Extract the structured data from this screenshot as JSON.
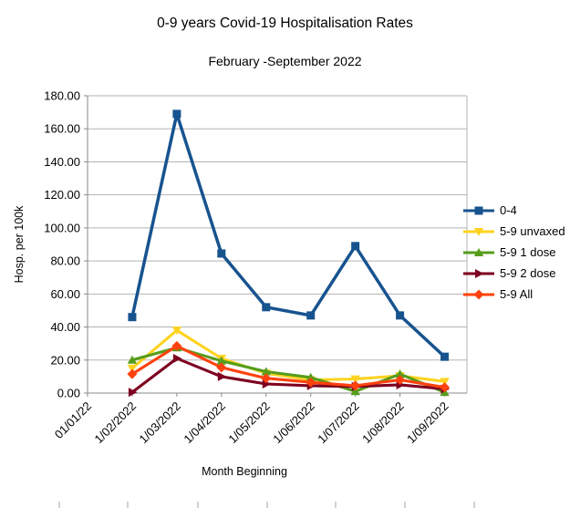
{
  "chart_data": {
    "type": "line",
    "title": "0-9 years Covid-19 Hospitalisation Rates",
    "subtitle": "February -September 2022",
    "xlabel": "Month Beginning",
    "ylabel": "Hosp. per 100k",
    "ylim": [
      0,
      180
    ],
    "ytick_step": 20,
    "ytick_labels": [
      "0.00",
      "20.00",
      "40.00",
      "60.00",
      "80.00",
      "100.00",
      "120.00",
      "140.00",
      "160.00",
      "180.00"
    ],
    "grid": true,
    "legend_position": "right",
    "categories": [
      "01/01/22",
      "1/02/2022",
      "1/03/2022",
      "1/04/2022",
      "1/05/2022",
      "1/06/2022",
      "1/07/2022",
      "1/08/2022",
      "1/09/2022"
    ],
    "series": [
      {
        "name": "0-4",
        "color": "#17538f",
        "marker": "square",
        "values": [
          null,
          46,
          169,
          84.5,
          52,
          47,
          89,
          47,
          22
        ]
      },
      {
        "name": "5-9 unvaxed",
        "color": "#ffd320",
        "marker": "triangle-down",
        "values": [
          null,
          15,
          38,
          21,
          12,
          8,
          8.5,
          10.5,
          7
        ]
      },
      {
        "name": "5-9 1 dose",
        "color": "#579d1c",
        "marker": "triangle-up",
        "values": [
          null,
          20,
          27.5,
          19.5,
          13,
          9.5,
          1,
          11.5,
          0.5
        ]
      },
      {
        "name": "5-9 2 dose",
        "color": "#7e0021",
        "marker": "triangle-right",
        "values": [
          null,
          0.5,
          21,
          10,
          5.5,
          4.5,
          4,
          5,
          2.5
        ]
      },
      {
        "name": "5-9 All",
        "color": "#ff420e",
        "marker": "diamond",
        "values": [
          null,
          11.5,
          28.5,
          15.5,
          9,
          6.5,
          4.5,
          8,
          3.5
        ]
      }
    ],
    "colors": {
      "gridline": "#b3b3b3",
      "axis": "#8a8a8a",
      "bottom_ticks": "#a6a6a6",
      "text": "#000000"
    }
  }
}
